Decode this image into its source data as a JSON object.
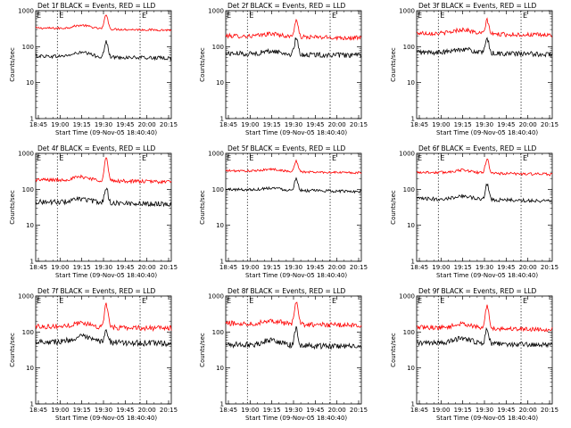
{
  "chart_data": [
    {
      "type": "line",
      "title": "Det 1f BLACK = Events, RED = LLD",
      "xlabel": "Start Time (09-Nov-05 18:40:40)",
      "ylabel": "Counts/sec",
      "yscale": "log",
      "ylim": [
        1,
        1000
      ],
      "yticks": [
        "1",
        "10",
        "100",
        "1000"
      ],
      "xticks": [
        "18:45",
        "19:00",
        "19:15",
        "19:30",
        "19:45",
        "20:00",
        "20:15"
      ],
      "markers": [
        "E",
        "E"
      ],
      "series": [
        {
          "color": "#ff0000",
          "baseline": 330,
          "bump": 1.25,
          "peak": 2.6,
          "noise": 0.03
        },
        {
          "color": "#000000",
          "baseline": 55,
          "bump": 1.3,
          "peak": 2.7,
          "noise": 0.05
        }
      ]
    },
    {
      "type": "line",
      "title": "Det 2f BLACK = Events, RED = LLD",
      "xlabel": "Start Time (09-Nov-05 18:40:40)",
      "ylabel": "Counts/sec",
      "yscale": "log",
      "ylim": [
        1,
        1000
      ],
      "yticks": [
        "1",
        "10",
        "100",
        "1000"
      ],
      "xticks": [
        "18:45",
        "19:00",
        "19:15",
        "19:30",
        "19:45",
        "20:00",
        "20:15"
      ],
      "markers": [
        "E",
        "E"
      ],
      "series": [
        {
          "color": "#ff0000",
          "baseline": 200,
          "bump": 1.2,
          "peak": 3.0,
          "noise": 0.06
        },
        {
          "color": "#000000",
          "baseline": 65,
          "bump": 1.2,
          "peak": 2.8,
          "noise": 0.07
        }
      ]
    },
    {
      "type": "line",
      "title": "Det 3f BLACK = Events, RED = LLD",
      "xlabel": "Start Time (09-Nov-05 18:40:40)",
      "ylabel": "Counts/sec",
      "yscale": "log",
      "ylim": [
        1,
        1000
      ],
      "yticks": [
        "1",
        "10",
        "100",
        "1000"
      ],
      "xticks": [
        "18:45",
        "19:00",
        "19:15",
        "19:30",
        "19:45",
        "20:00",
        "20:15"
      ],
      "markers": [
        "E",
        "E"
      ],
      "series": [
        {
          "color": "#ff0000",
          "baseline": 240,
          "bump": 1.3,
          "peak": 2.4,
          "noise": 0.06
        },
        {
          "color": "#000000",
          "baseline": 70,
          "bump": 1.3,
          "peak": 2.5,
          "noise": 0.07
        }
      ]
    },
    {
      "type": "line",
      "title": "Det 4f BLACK = Events, RED = LLD",
      "xlabel": "Start Time (09-Nov-05 18:40:40)",
      "ylabel": "Counts/sec",
      "yscale": "log",
      "ylim": [
        1,
        1000
      ],
      "yticks": [
        "1",
        "10",
        "100",
        "1000"
      ],
      "xticks": [
        "18:45",
        "19:00",
        "19:15",
        "19:30",
        "19:45",
        "20:00",
        "20:15"
      ],
      "markers": [
        "E",
        "E"
      ],
      "series": [
        {
          "color": "#ff0000",
          "baseline": 185,
          "bump": 1.25,
          "peak": 4.5,
          "noise": 0.05
        },
        {
          "color": "#000000",
          "baseline": 45,
          "bump": 1.25,
          "peak": 2.6,
          "noise": 0.07
        }
      ]
    },
    {
      "type": "line",
      "title": "Det 5f BLACK = Events, RED = LLD",
      "xlabel": "Start Time (09-Nov-05 18:40:40)",
      "ylabel": "Counts/sec",
      "yscale": "log",
      "ylim": [
        1,
        1000
      ],
      "yticks": [
        "1",
        "10",
        "100",
        "1000"
      ],
      "xticks": [
        "18:45",
        "19:00",
        "19:15",
        "19:30",
        "19:45",
        "20:00",
        "20:15"
      ],
      "markers": [
        "E",
        "E"
      ],
      "series": [
        {
          "color": "#ff0000",
          "baseline": 330,
          "bump": 1.15,
          "peak": 2.0,
          "noise": 0.03
        },
        {
          "color": "#000000",
          "baseline": 100,
          "bump": 1.15,
          "peak": 2.2,
          "noise": 0.04
        }
      ]
    },
    {
      "type": "line",
      "title": "Det 6f BLACK = Events, RED = LLD",
      "xlabel": "Start Time (09-Nov-05 18:40:40)",
      "ylabel": "Counts/sec",
      "yscale": "log",
      "ylim": [
        1,
        1000
      ],
      "yticks": [
        "1",
        "10",
        "100",
        "1000"
      ],
      "xticks": [
        "18:45",
        "19:00",
        "19:15",
        "19:30",
        "19:45",
        "20:00",
        "20:15"
      ],
      "markers": [
        "E",
        "E"
      ],
      "series": [
        {
          "color": "#ff0000",
          "baseline": 300,
          "bump": 1.2,
          "peak": 2.6,
          "noise": 0.04
        },
        {
          "color": "#000000",
          "baseline": 55,
          "bump": 1.25,
          "peak": 2.8,
          "noise": 0.05
        }
      ]
    },
    {
      "type": "line",
      "title": "Det 7f BLACK = Events, RED = LLD",
      "xlabel": "Start Time (09-Nov-05 18:40:40)",
      "ylabel": "Counts/sec",
      "yscale": "log",
      "ylim": [
        1,
        1000
      ],
      "yticks": [
        "1",
        "10",
        "100",
        "1000"
      ],
      "xticks": [
        "18:45",
        "19:00",
        "19:15",
        "19:30",
        "19:45",
        "20:00",
        "20:15"
      ],
      "markers": [
        "E",
        "E"
      ],
      "series": [
        {
          "color": "#ff0000",
          "baseline": 145,
          "bump": 1.3,
          "peak": 4.5,
          "noise": 0.07
        },
        {
          "color": "#000000",
          "baseline": 55,
          "bump": 1.4,
          "peak": 2.3,
          "noise": 0.08
        }
      ]
    },
    {
      "type": "line",
      "title": "Det 8f BLACK = Events, RED = LLD",
      "xlabel": "Start Time (09-Nov-05 18:40:40)",
      "ylabel": "Counts/sec",
      "yscale": "log",
      "ylim": [
        1,
        1000
      ],
      "yticks": [
        "1",
        "10",
        "100",
        "1000"
      ],
      "xticks": [
        "18:45",
        "19:00",
        "19:15",
        "19:30",
        "19:45",
        "20:00",
        "20:15"
      ],
      "markers": [
        "E",
        "E"
      ],
      "series": [
        {
          "color": "#ff0000",
          "baseline": 175,
          "bump": 1.25,
          "peak": 4.5,
          "noise": 0.07
        },
        {
          "color": "#000000",
          "baseline": 45,
          "bump": 1.4,
          "peak": 3.0,
          "noise": 0.08
        }
      ]
    },
    {
      "type": "line",
      "title": "Det 9f BLACK = Events, RED = LLD",
      "xlabel": "Start Time (09-Nov-05 18:40:40)",
      "ylabel": "Counts/sec",
      "yscale": "log",
      "ylim": [
        1,
        1000
      ],
      "yticks": [
        "1",
        "10",
        "100",
        "1000"
      ],
      "xticks": [
        "18:45",
        "19:00",
        "19:15",
        "19:30",
        "19:45",
        "20:00",
        "20:15"
      ],
      "markers": [
        "E",
        "E"
      ],
      "series": [
        {
          "color": "#ff0000",
          "baseline": 135,
          "bump": 1.3,
          "peak": 4.5,
          "noise": 0.06
        },
        {
          "color": "#000000",
          "baseline": 50,
          "bump": 1.4,
          "peak": 2.6,
          "noise": 0.07
        }
      ]
    }
  ]
}
